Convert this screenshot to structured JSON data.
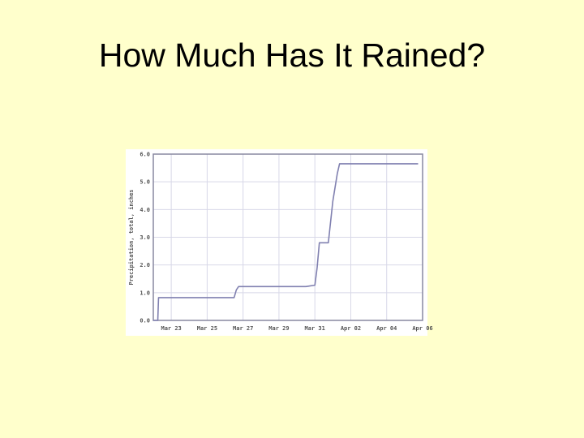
{
  "slide": {
    "title": "How Much Has It Rained?"
  },
  "colors": {
    "background": "#FFFFCC",
    "plot_background": "#FFFFFF",
    "grid": "#D8D8E8",
    "axis": "#8888A0",
    "line": "#8080B0",
    "tick_text": "#555555"
  },
  "chart_data": {
    "type": "line",
    "title": "",
    "xlabel": "",
    "ylabel": "Precipitation, total, inches",
    "xlim": [
      "Mar 22",
      "Apr 06"
    ],
    "ylim": [
      0,
      6
    ],
    "grid": true,
    "x_ticks": [
      {
        "date": "Mar 23",
        "label": "Mar 23"
      },
      {
        "date": "Mar 25",
        "label": "Mar 25"
      },
      {
        "date": "Mar 27",
        "label": "Mar 27"
      },
      {
        "date": "Mar 29",
        "label": "Mar 29"
      },
      {
        "date": "Mar 31",
        "label": "Mar 31"
      },
      {
        "date": "Apr 02",
        "label": "Apr 02"
      },
      {
        "date": "Apr 04",
        "label": "Apr 04"
      },
      {
        "date": "Apr 06",
        "label": "Apr 06"
      }
    ],
    "y_ticks": [
      {
        "value": 0,
        "label": "0.0"
      },
      {
        "value": 1,
        "label": "1.0"
      },
      {
        "value": 2,
        "label": "2.0"
      },
      {
        "value": 3,
        "label": "3.0"
      },
      {
        "value": 4,
        "label": "4.0"
      },
      {
        "value": 5,
        "label": "5.0"
      },
      {
        "value": 6,
        "label": "6.0"
      }
    ],
    "series": [
      {
        "points": [
          {
            "x": "Mar 22 00:00",
            "y": 0.0
          },
          {
            "x": "Mar 22 06:00",
            "y": 0.0
          },
          {
            "x": "Mar 22 07:00",
            "y": 0.82
          },
          {
            "x": "Mar 26 12:00",
            "y": 0.82
          },
          {
            "x": "Mar 26 15:00",
            "y": 1.1
          },
          {
            "x": "Mar 26 18:00",
            "y": 1.22
          },
          {
            "x": "Mar 30 12:00",
            "y": 1.22
          },
          {
            "x": "Mar 31 00:00",
            "y": 1.27
          },
          {
            "x": "Mar 31 03:00",
            "y": 1.9
          },
          {
            "x": "Mar 31 06:00",
            "y": 2.8
          },
          {
            "x": "Mar 31 18:00",
            "y": 2.8
          },
          {
            "x": "Apr 01 00:00",
            "y": 4.3
          },
          {
            "x": "Apr 01 06:00",
            "y": 5.3
          },
          {
            "x": "Apr 01 09:00",
            "y": 5.65
          },
          {
            "x": "Apr 05 18:00",
            "y": 5.65
          }
        ]
      }
    ]
  }
}
